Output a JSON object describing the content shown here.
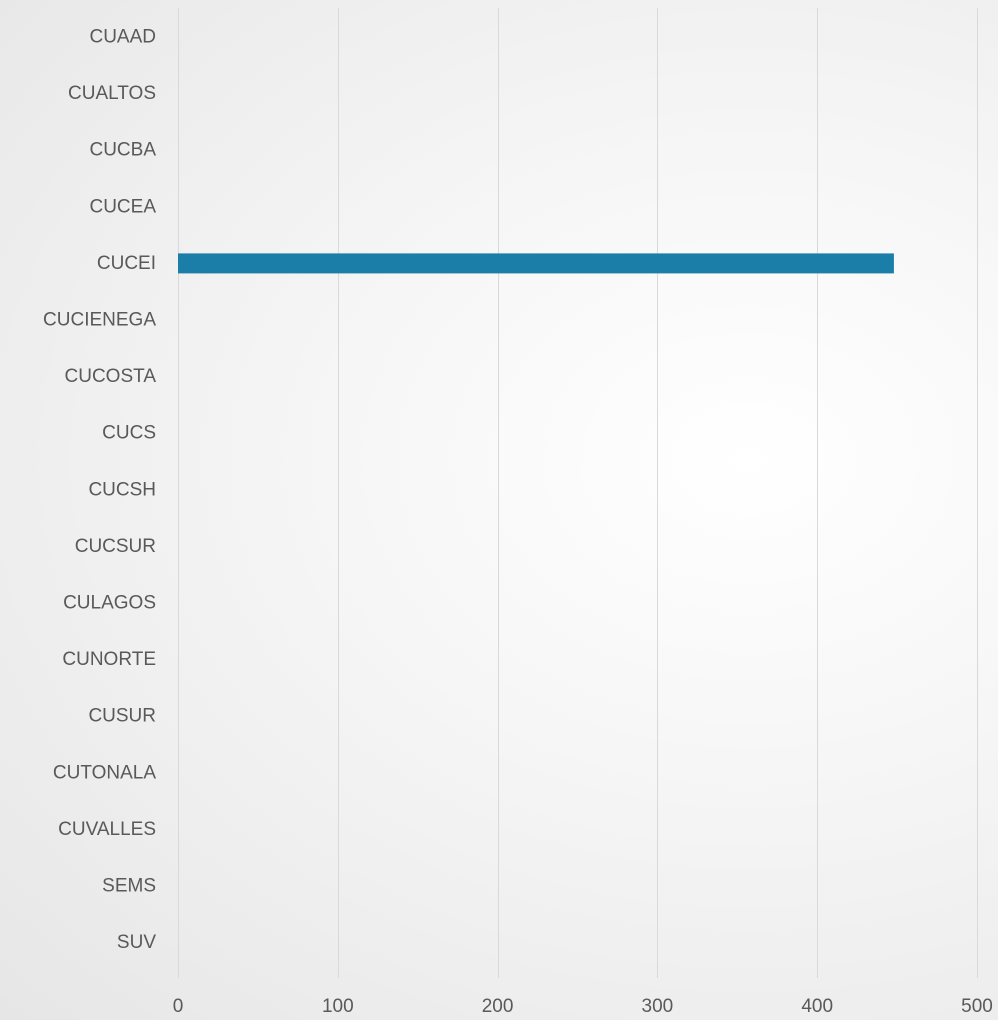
{
  "chart_data": {
    "type": "bar",
    "orientation": "horizontal",
    "categories": [
      "CUAAD",
      "CUALTOS",
      "CUCBA",
      "CUCEA",
      "CUCEI",
      "CUCIENEGA",
      "CUCOSTA",
      "CUCS",
      "CUCSH",
      "CUCSUR",
      "CULAGOS",
      "CUNORTE",
      "CUSUR",
      "CUTONALA",
      "CUVALLES",
      "SEMS",
      "SUV"
    ],
    "values": [
      0,
      0,
      0,
      0,
      448,
      0,
      0,
      0,
      0,
      0,
      0,
      0,
      0,
      0,
      0,
      0,
      0
    ],
    "xlim": [
      0,
      500
    ],
    "xticks": [
      "0",
      "100",
      "200",
      "300",
      "400",
      "500"
    ],
    "grid": true,
    "bar_color": "#1a7ea8",
    "grid_color": "#d9d9d9",
    "label_color": "#595959"
  }
}
